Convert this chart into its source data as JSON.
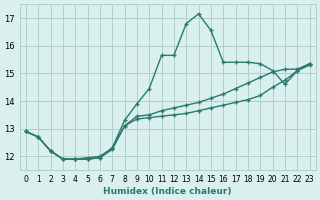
{
  "xlabel": "Humidex (Indice chaleur)",
  "x_values": [
    0,
    1,
    2,
    3,
    4,
    5,
    6,
    7,
    8,
    9,
    10,
    11,
    12,
    13,
    14,
    15,
    16,
    17,
    18,
    19,
    20,
    21,
    22,
    23
  ],
  "line1": [
    12.9,
    12.7,
    12.2,
    11.9,
    11.9,
    11.9,
    11.95,
    12.25,
    13.1,
    13.35,
    13.4,
    13.45,
    13.5,
    13.55,
    13.65,
    13.75,
    13.85,
    13.95,
    14.05,
    14.2,
    14.5,
    14.75,
    15.1,
    15.3
  ],
  "line2": [
    12.9,
    12.7,
    12.2,
    11.9,
    11.9,
    11.9,
    11.95,
    12.3,
    13.3,
    13.9,
    14.45,
    15.65,
    15.65,
    16.8,
    17.15,
    16.55,
    15.4,
    15.4,
    15.4,
    15.35,
    15.1,
    14.6,
    15.1,
    15.35
  ],
  "line3": [
    12.9,
    12.7,
    12.2,
    11.9,
    11.9,
    11.95,
    12.0,
    12.3,
    13.1,
    13.45,
    13.5,
    13.65,
    13.75,
    13.85,
    13.95,
    14.1,
    14.25,
    14.45,
    14.65,
    14.85,
    15.05,
    15.15,
    15.15,
    15.35
  ],
  "line_color": "#2a7a6e",
  "bg_color": "#d9f0ee",
  "grid_color": "#b0cfc9",
  "ylim": [
    11.5,
    17.5
  ],
  "yticks": [
    12,
    13,
    14,
    15,
    16,
    17
  ],
  "xlim": [
    -0.5,
    23.5
  ],
  "xtick_labels": [
    "0",
    "1",
    "2",
    "3",
    "4",
    "5",
    "6",
    "7",
    "8",
    "9",
    "10",
    "11",
    "12",
    "13",
    "14",
    "15",
    "16",
    "17",
    "18",
    "19",
    "20",
    "21",
    "22",
    "23"
  ]
}
